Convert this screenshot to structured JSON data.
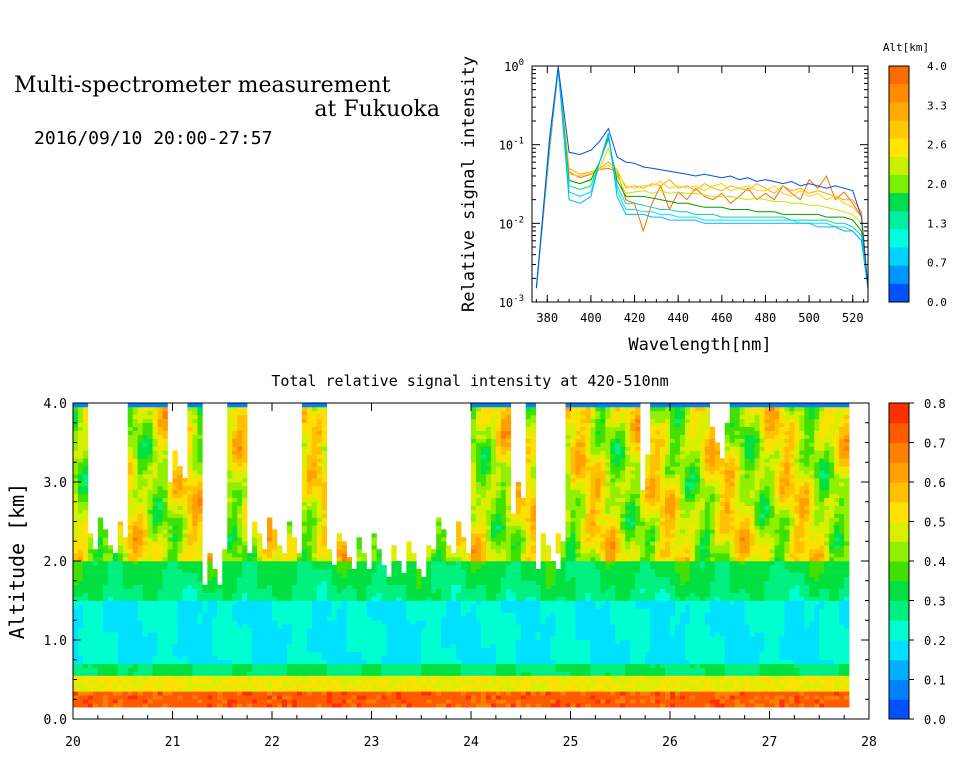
{
  "header": {
    "title_line1": "Multi-spectrometer measurement",
    "title_line2": "at Fukuoka",
    "datetime": "2016/09/10 20:00-27:57"
  },
  "chart_data": [
    {
      "type": "line",
      "title": "",
      "xlabel": "Wavelength[nm]",
      "ylabel": "Relative signal intensity",
      "x_ticks": [
        380,
        400,
        420,
        440,
        460,
        480,
        500,
        520
      ],
      "xlim": [
        373,
        527
      ],
      "ylim": [
        0.001,
        1
      ],
      "y_scale": "log",
      "y_ticks": [
        {
          "base": "10",
          "exp": "-3",
          "value": 0.001
        },
        {
          "base": "10",
          "exp": "-2",
          "value": 0.01
        },
        {
          "base": "10",
          "exp": "-1",
          "value": 0.1
        },
        {
          "base": "10",
          "exp": "0",
          "value": 1
        }
      ],
      "x": [
        375,
        381,
        385,
        390,
        395,
        400,
        404,
        408,
        412,
        416,
        420,
        424,
        428,
        432,
        436,
        440,
        444,
        448,
        452,
        456,
        460,
        464,
        468,
        472,
        476,
        480,
        484,
        488,
        492,
        496,
        500,
        504,
        508,
        512,
        516,
        520,
        524,
        527
      ],
      "series": [
        {
          "color": "#ff6a00",
          "values": [
            0.0015,
            0.08,
            0.9,
            0.045,
            0.038,
            0.042,
            0.048,
            0.05,
            0.045,
            0.02,
            0.018,
            0.008,
            0.018,
            0.03,
            0.015,
            0.025,
            0.02,
            0.028,
            0.022,
            0.02,
            0.024,
            0.018,
            0.022,
            0.028,
            0.02,
            0.024,
            0.02,
            0.03,
            0.024,
            0.02,
            0.036,
            0.028,
            0.04,
            0.02,
            0.025,
            0.018,
            0.012,
            0.0015
          ]
        },
        {
          "color": "#ffaa00",
          "values": [
            0.0015,
            0.09,
            0.9,
            0.05,
            0.042,
            0.045,
            0.05,
            0.06,
            0.048,
            0.028,
            0.03,
            0.028,
            0.032,
            0.03,
            0.036,
            0.028,
            0.03,
            0.026,
            0.032,
            0.028,
            0.026,
            0.03,
            0.028,
            0.026,
            0.032,
            0.028,
            0.024,
            0.03,
            0.026,
            0.028,
            0.024,
            0.026,
            0.024,
            0.022,
            0.02,
            0.02,
            0.014,
            0.0015
          ]
        },
        {
          "color": "#ffd200",
          "values": [
            0.0015,
            0.09,
            0.92,
            0.042,
            0.04,
            0.043,
            0.048,
            0.055,
            0.045,
            0.03,
            0.028,
            0.03,
            0.03,
            0.034,
            0.028,
            0.03,
            0.028,
            0.03,
            0.026,
            0.03,
            0.032,
            0.026,
            0.028,
            0.03,
            0.026,
            0.026,
            0.03,
            0.024,
            0.022,
            0.026,
            0.022,
            0.024,
            0.02,
            0.022,
            0.018,
            0.016,
            0.012,
            0.0015
          ]
        },
        {
          "color": "#c8e600",
          "values": [
            0.0015,
            0.09,
            0.92,
            0.035,
            0.032,
            0.035,
            0.05,
            0.09,
            0.04,
            0.024,
            0.025,
            0.026,
            0.024,
            0.026,
            0.024,
            0.025,
            0.024,
            0.024,
            0.023,
            0.022,
            0.022,
            0.022,
            0.021,
            0.02,
            0.021,
            0.02,
            0.019,
            0.019,
            0.018,
            0.018,
            0.017,
            0.017,
            0.016,
            0.015,
            0.014,
            0.013,
            0.01,
            0.0015
          ]
        },
        {
          "color": "#00a000",
          "values": [
            0.0015,
            0.1,
            0.95,
            0.035,
            0.032,
            0.036,
            0.06,
            0.12,
            0.035,
            0.022,
            0.022,
            0.022,
            0.021,
            0.02,
            0.019,
            0.018,
            0.018,
            0.017,
            0.016,
            0.016,
            0.016,
            0.015,
            0.015,
            0.015,
            0.014,
            0.014,
            0.014,
            0.013,
            0.013,
            0.013,
            0.013,
            0.013,
            0.012,
            0.012,
            0.012,
            0.011,
            0.008,
            0.0015
          ]
        },
        {
          "color": "#00d8a0",
          "values": [
            0.0015,
            0.1,
            0.95,
            0.03,
            0.027,
            0.03,
            0.06,
            0.13,
            0.03,
            0.018,
            0.018,
            0.017,
            0.016,
            0.015,
            0.015,
            0.014,
            0.014,
            0.013,
            0.013,
            0.013,
            0.012,
            0.012,
            0.012,
            0.012,
            0.012,
            0.012,
            0.012,
            0.012,
            0.011,
            0.011,
            0.011,
            0.011,
            0.011,
            0.01,
            0.01,
            0.009,
            0.007,
            0.0015
          ]
        },
        {
          "color": "#00e6e6",
          "values": [
            0.0015,
            0.1,
            0.95,
            0.025,
            0.022,
            0.025,
            0.06,
            0.14,
            0.026,
            0.015,
            0.015,
            0.014,
            0.014,
            0.013,
            0.013,
            0.012,
            0.012,
            0.012,
            0.011,
            0.011,
            0.011,
            0.011,
            0.011,
            0.011,
            0.011,
            0.011,
            0.011,
            0.011,
            0.011,
            0.01,
            0.01,
            0.01,
            0.01,
            0.009,
            0.009,
            0.008,
            0.006,
            0.0015
          ]
        },
        {
          "color": "#00b4ff",
          "values": [
            0.0015,
            0.1,
            0.95,
            0.02,
            0.018,
            0.022,
            0.06,
            0.14,
            0.022,
            0.013,
            0.013,
            0.013,
            0.012,
            0.012,
            0.011,
            0.011,
            0.011,
            0.011,
            0.01,
            0.01,
            0.01,
            0.01,
            0.01,
            0.01,
            0.01,
            0.01,
            0.01,
            0.01,
            0.01,
            0.01,
            0.01,
            0.009,
            0.009,
            0.009,
            0.008,
            0.008,
            0.006,
            0.0015
          ]
        },
        {
          "color": "#0050e6",
          "values": [
            0.0015,
            0.12,
            0.98,
            0.08,
            0.075,
            0.085,
            0.11,
            0.16,
            0.07,
            0.06,
            0.058,
            0.052,
            0.05,
            0.048,
            0.046,
            0.044,
            0.042,
            0.04,
            0.042,
            0.04,
            0.038,
            0.04,
            0.036,
            0.038,
            0.034,
            0.036,
            0.034,
            0.032,
            0.034,
            0.03,
            0.032,
            0.03,
            0.028,
            0.03,
            0.028,
            0.026,
            0.012,
            0.0015
          ]
        }
      ],
      "colorbar": {
        "title": "Alt[km]",
        "tick_labels": [
          "4.0",
          "3.3",
          "2.6",
          "2.0",
          "1.3",
          "0.7",
          "0.0"
        ],
        "colors": [
          "#ff6a00",
          "#ff8c00",
          "#ffaa00",
          "#ffc800",
          "#ffe600",
          "#c8f000",
          "#78f000",
          "#00dc50",
          "#00f0a0",
          "#00ffe0",
          "#00d2ff",
          "#0096ff",
          "#0050ff"
        ]
      }
    },
    {
      "type": "heatmap",
      "title": "Total relative signal intensity at 420-510nm",
      "xlabel": "",
      "ylabel": "Altitude [km]",
      "x_ticks": [
        "20",
        "21",
        "22",
        "23",
        "24",
        "25",
        "26",
        "27",
        "28"
      ],
      "xlim": [
        20,
        28
      ],
      "y_ticks": [
        "0.0",
        "1.0",
        "2.0",
        "3.0",
        "4.0"
      ],
      "ylim": [
        0,
        4
      ],
      "data_time_range": [
        20.0,
        27.8
      ],
      "colorbar": {
        "tick_labels": [
          "0.8",
          "0.7",
          "0.6",
          "0.5",
          "0.4",
          "0.3",
          "0.2",
          "0.1",
          "0.0"
        ],
        "vmin": 0.0,
        "vmax": 0.8,
        "colors": [
          "#0050ff",
          "#0080ff",
          "#00b0ff",
          "#00e0ff",
          "#00ffd0",
          "#00f080",
          "#00e040",
          "#40e000",
          "#90f000",
          "#d8f000",
          "#ffe000",
          "#ffc000",
          "#ffa000",
          "#ff8000",
          "#ff5a00",
          "#ff3000"
        ],
        "masked": "white"
      }
    }
  ]
}
